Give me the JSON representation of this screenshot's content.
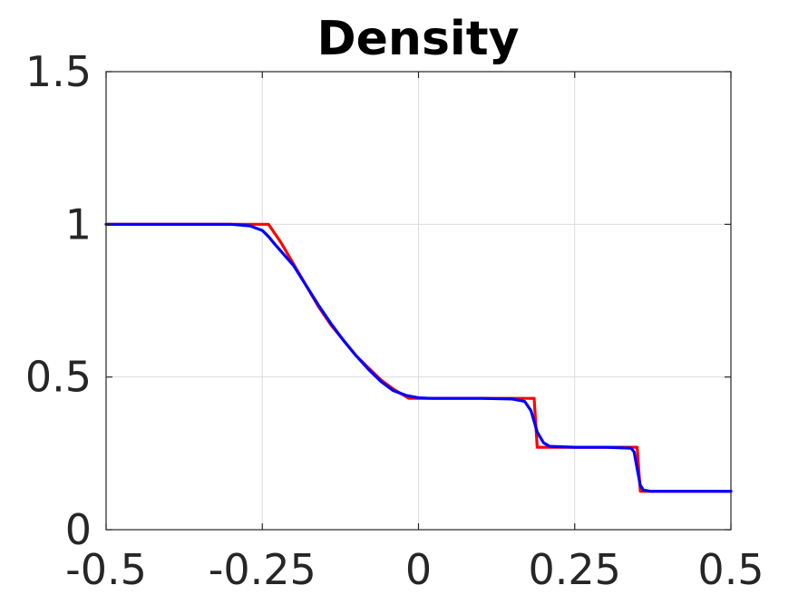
{
  "chart_data": {
    "type": "line",
    "title": "Density",
    "xlabel": "",
    "ylabel": "",
    "xlim": [
      -0.5,
      0.5
    ],
    "ylim": [
      0,
      1.5
    ],
    "xticks": [
      -0.5,
      -0.25,
      0,
      0.25,
      0.5
    ],
    "xtick_labels": [
      "-0.5",
      "-0.25",
      "0",
      "0.25",
      "0.5"
    ],
    "yticks": [
      0,
      0.5,
      1,
      1.5
    ],
    "ytick_labels": [
      "0",
      "0.5",
      "1",
      "1.5"
    ],
    "grid": true,
    "legend": "none",
    "series": [
      {
        "color": "#ff0000",
        "x": [
          -0.5,
          -0.24,
          -0.22,
          -0.2,
          -0.18,
          -0.16,
          -0.14,
          -0.12,
          -0.1,
          -0.08,
          -0.06,
          -0.04,
          -0.015,
          0.0,
          0.05,
          0.1,
          0.15,
          0.185,
          0.19,
          0.2,
          0.25,
          0.3,
          0.35,
          0.355,
          0.5
        ],
        "y": [
          1.0,
          1.0,
          0.94,
          0.87,
          0.8,
          0.73,
          0.67,
          0.62,
          0.57,
          0.53,
          0.49,
          0.46,
          0.43,
          0.43,
          0.43,
          0.43,
          0.43,
          0.43,
          0.27,
          0.27,
          0.27,
          0.27,
          0.27,
          0.126,
          0.126
        ]
      },
      {
        "color": "#0000ff",
        "x": [
          -0.5,
          -0.3,
          -0.27,
          -0.25,
          -0.24,
          -0.23,
          -0.2,
          -0.18,
          -0.16,
          -0.14,
          -0.12,
          -0.1,
          -0.08,
          -0.06,
          -0.04,
          -0.02,
          0.0,
          0.02,
          0.05,
          0.1,
          0.15,
          0.17,
          0.18,
          0.19,
          0.2,
          0.21,
          0.25,
          0.3,
          0.34,
          0.345,
          0.35,
          0.355,
          0.36,
          0.37,
          0.5
        ],
        "y": [
          1.0,
          1.0,
          0.995,
          0.98,
          0.96,
          0.935,
          0.865,
          0.8,
          0.735,
          0.675,
          0.62,
          0.57,
          0.525,
          0.485,
          0.455,
          0.44,
          0.432,
          0.43,
          0.43,
          0.43,
          0.428,
          0.42,
          0.39,
          0.32,
          0.285,
          0.273,
          0.27,
          0.27,
          0.267,
          0.255,
          0.2,
          0.145,
          0.13,
          0.126,
          0.126
        ]
      }
    ]
  }
}
